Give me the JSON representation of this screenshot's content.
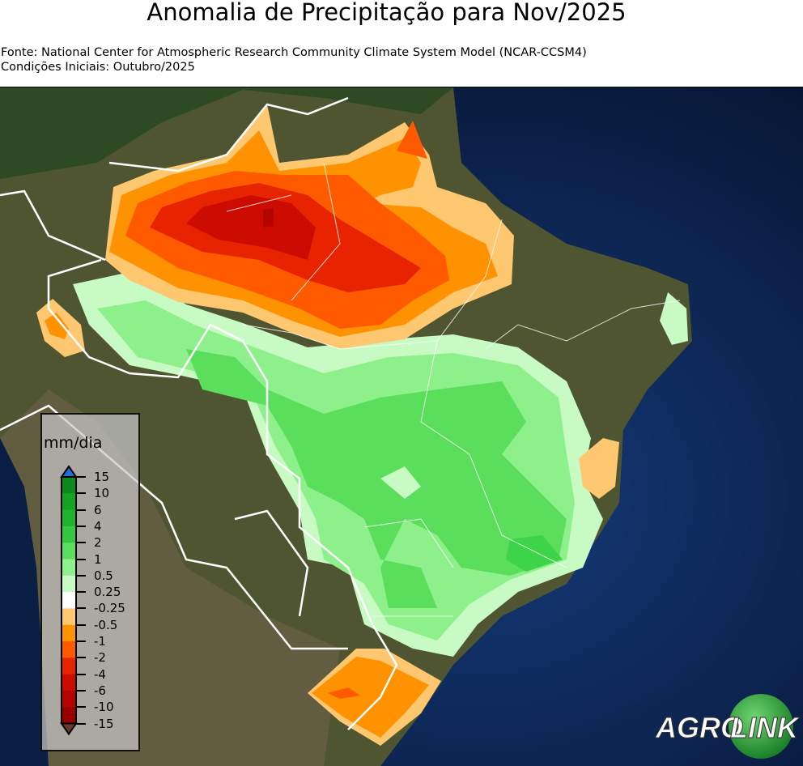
{
  "title": "Anomalia de Precipitação para Nov/2025",
  "source": "Fonte: National Center for Atmospheric Research Community Climate System Model (NCAR-CCSM4)",
  "initial_conditions": "Condições Iniciais: Outubro/2025",
  "legend": {
    "unit": "mm/dia",
    "ticks": [
      "15",
      "10",
      "6",
      "4",
      "2",
      "1",
      "0.5",
      "0.25",
      "-0.25",
      "-0.5",
      "-1",
      "-2",
      "-4",
      "-6",
      "-10",
      "-15"
    ],
    "colors": [
      "#0e8a1c",
      "#15a322",
      "#1fb42c",
      "#34c83e",
      "#5ade5c",
      "#8ef08a",
      "#c8fac4",
      "#ffffff",
      "#ffc870",
      "#ff9200",
      "#ff5a00",
      "#e82400",
      "#cc0c00",
      "#b40400",
      "#9a0000"
    ],
    "over_color": "#1f6fd8",
    "under_color": "#6b3a2a"
  },
  "logo": {
    "text_left": "AGRO",
    "text_right": "LINK"
  }
}
